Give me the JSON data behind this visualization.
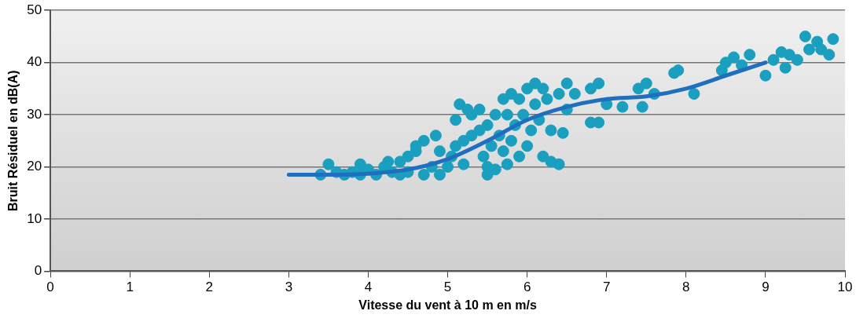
{
  "chart_data": {
    "type": "scatter",
    "xlabel": "Vitesse du vent à 10 m en m/s",
    "ylabel": "Bruit Résiduel en dB(A)",
    "xlim": [
      0,
      10
    ],
    "xticks": [
      0,
      1,
      2,
      3,
      4,
      5,
      6,
      7,
      8,
      9,
      10
    ],
    "ylim": [
      0,
      50
    ],
    "yticks": [
      0,
      10,
      20,
      30,
      40,
      50
    ],
    "grid": "y",
    "marker": "circle",
    "series": [
      {
        "color": "#1a9fbf",
        "x": [
          3.4,
          3.5,
          3.6,
          3.7,
          3.8,
          3.9,
          3.9,
          4.0,
          4.1,
          4.2,
          4.25,
          4.3,
          4.4,
          4.4,
          4.5,
          4.5,
          4.6,
          4.6,
          4.7,
          4.7,
          4.8,
          4.85,
          4.9,
          4.9,
          5.0,
          5.05,
          5.1,
          5.1,
          5.15,
          5.2,
          5.2,
          5.25,
          5.3,
          5.3,
          5.4,
          5.4,
          5.45,
          5.5,
          5.5,
          5.5,
          5.55,
          5.6,
          5.6,
          5.65,
          5.7,
          5.7,
          5.75,
          5.75,
          5.8,
          5.8,
          5.85,
          5.9,
          5.9,
          5.95,
          6.0,
          6.0,
          6.05,
          6.1,
          6.1,
          6.15,
          6.2,
          6.2,
          6.25,
          6.3,
          6.3,
          6.4,
          6.4,
          6.45,
          6.5,
          6.5,
          6.6,
          6.8,
          6.8,
          6.9,
          6.9,
          7.0,
          7.2,
          7.4,
          7.45,
          7.5,
          7.6,
          7.85,
          7.9,
          8.1,
          8.45,
          8.5,
          8.6,
          8.7,
          8.8,
          9.0,
          9.1,
          9.2,
          9.25,
          9.3,
          9.4,
          9.5,
          9.55,
          9.65,
          9.7,
          9.8,
          9.85
        ],
        "values": [
          18.5,
          20.5,
          19,
          18.5,
          19,
          20.5,
          18.5,
          19.5,
          18.5,
          20,
          21,
          19,
          18.5,
          21,
          22,
          19,
          23,
          24,
          18.5,
          25,
          20,
          26,
          18.5,
          23,
          20,
          22,
          24,
          29,
          32,
          20.5,
          25,
          31,
          26,
          30,
          27,
          31,
          22,
          18.5,
          20,
          28,
          24,
          30,
          19.5,
          26,
          33,
          23,
          20.5,
          30,
          34,
          25,
          28,
          22,
          33,
          30,
          35,
          24,
          27,
          32,
          36,
          29,
          22,
          35,
          33,
          21,
          27,
          34,
          20.5,
          26.5,
          36,
          31,
          34,
          35,
          28.5,
          36,
          28.5,
          32,
          31.5,
          35,
          31.5,
          36,
          34,
          38,
          38.5,
          34,
          38.5,
          40,
          41,
          39.5,
          41.5,
          37.5,
          40.5,
          42,
          39,
          41.5,
          40.5,
          45,
          42.5,
          44,
          42.5,
          41.5,
          44.5
        ]
      },
      {
        "type": "line",
        "color": "#1f6fc0",
        "marker": "none",
        "x": [
          3,
          3.5,
          4,
          4.5,
          5,
          5.5,
          6,
          6.5,
          7,
          7.5,
          8,
          8.5,
          9
        ],
        "values": [
          18.5,
          18.5,
          18.7,
          19.5,
          21.5,
          25,
          29,
          31.5,
          33,
          33.5,
          35,
          37.5,
          40
        ]
      }
    ]
  }
}
